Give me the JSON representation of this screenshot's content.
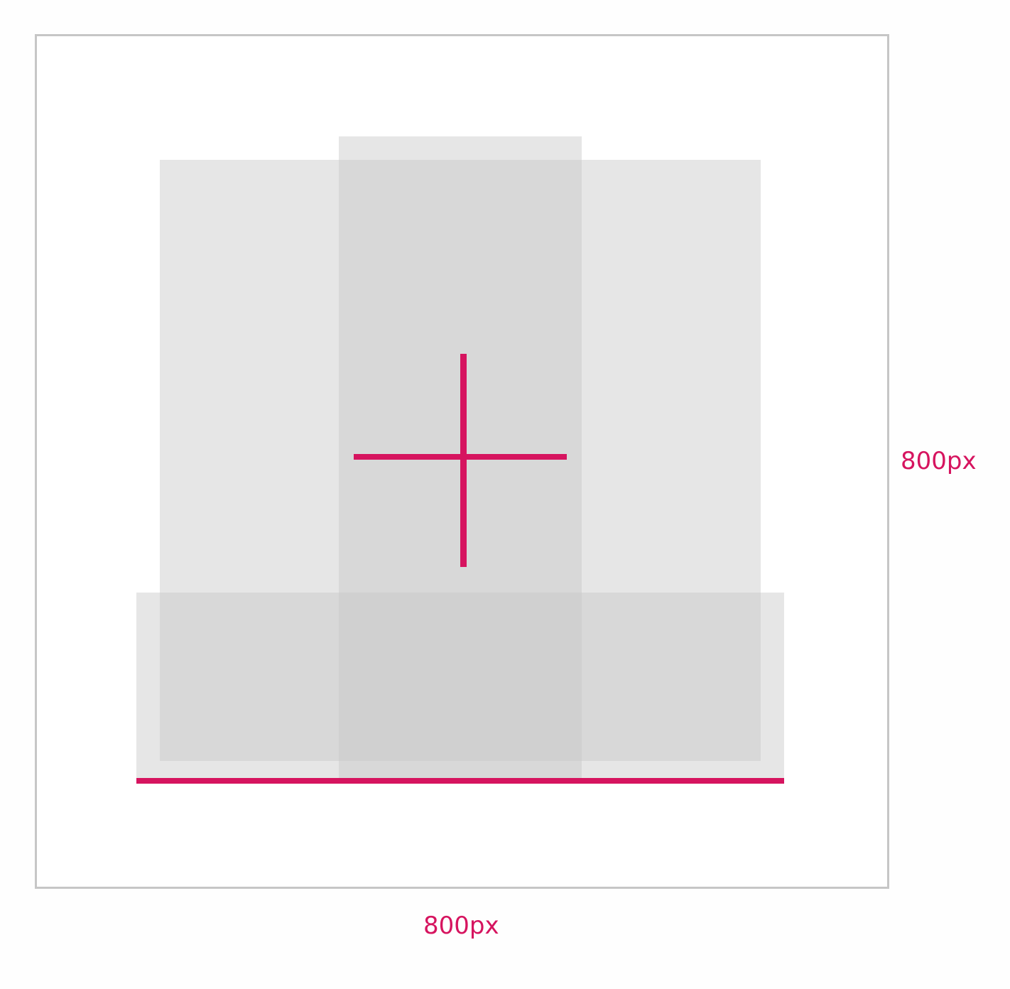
{
  "colors": {
    "accent": "#d6145f",
    "frame_border": "#c6c6c6",
    "panel_fill": "#d8d8d8",
    "background": "#ffffff"
  },
  "dimensions": {
    "height_label": "800px",
    "width_label": "800px"
  }
}
